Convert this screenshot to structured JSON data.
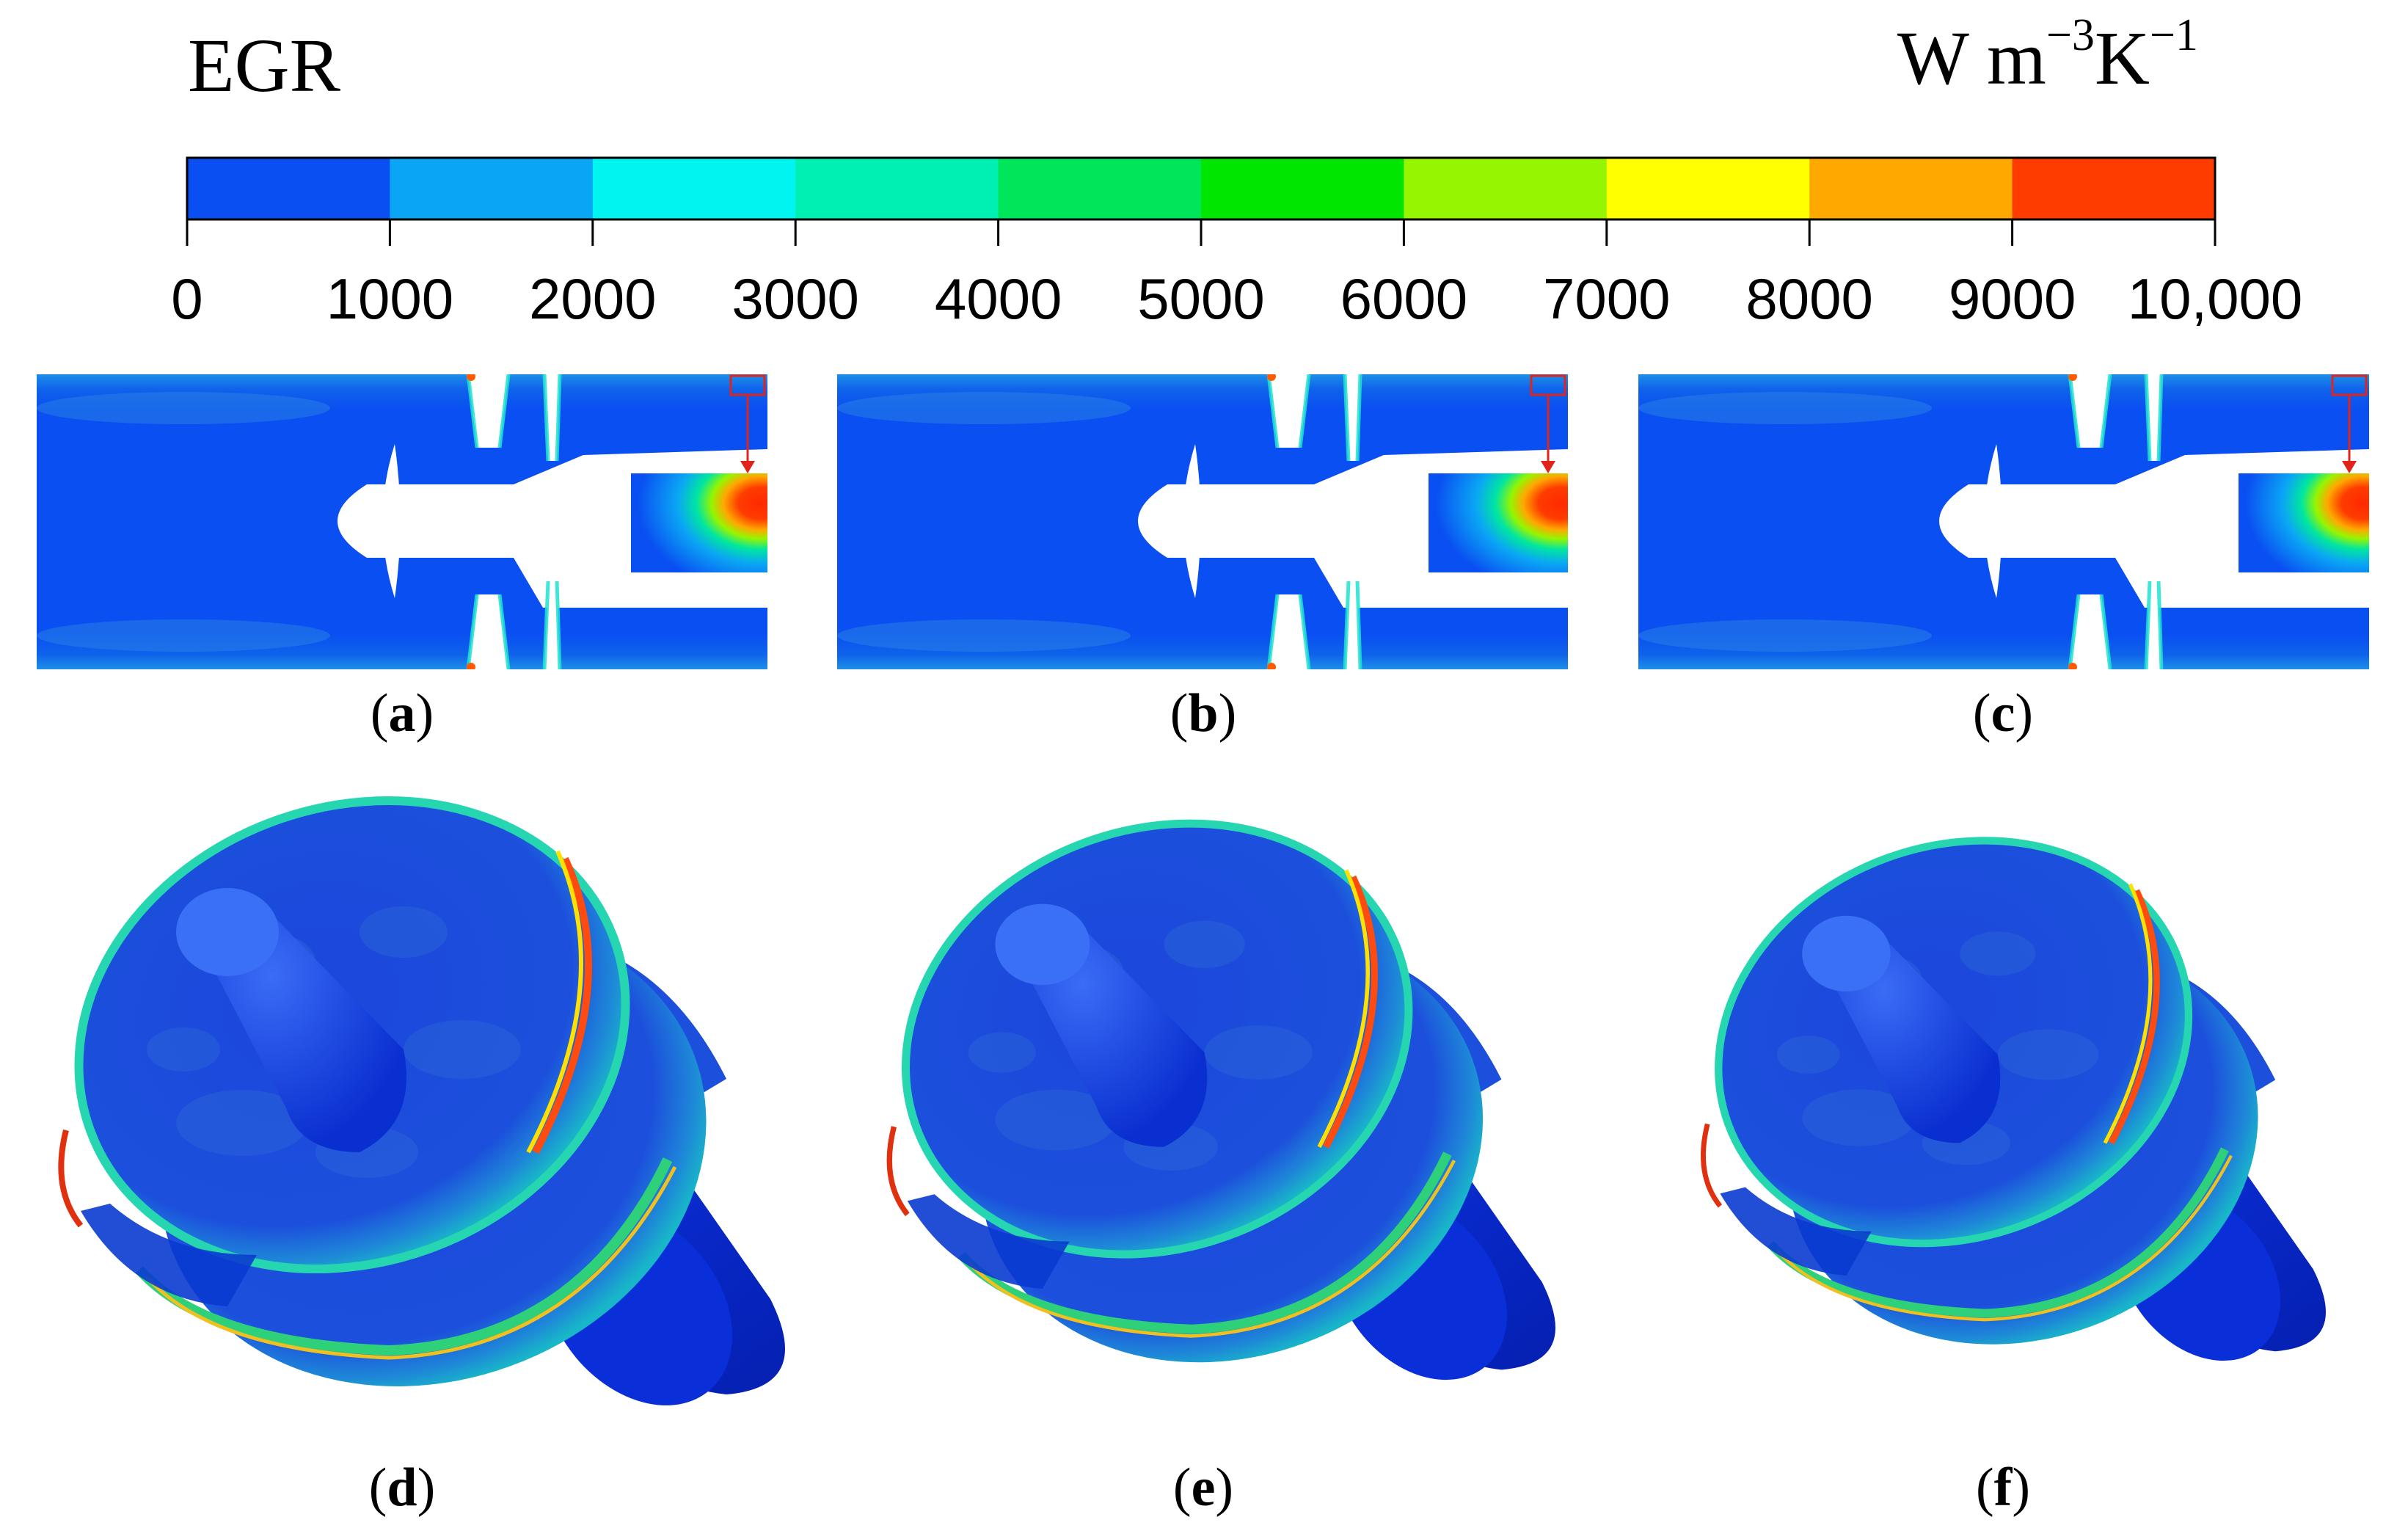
{
  "figure": {
    "title_left": "EGR",
    "unit": {
      "base": "W m",
      "exp1": "−3",
      "mid": "K",
      "exp2": "−1"
    }
  },
  "colorbar": {
    "ticks": [
      "0",
      "1000",
      "2000",
      "3000",
      "4000",
      "5000",
      "6000",
      "7000",
      "8000",
      "9000",
      "10,000"
    ],
    "colors": [
      "#0a4ff2",
      "#0aa6f5",
      "#00f5f0",
      "#00f0b4",
      "#00e65a",
      "#00e600",
      "#96f500",
      "#ffff00",
      "#ffa800",
      "#ff3c00"
    ],
    "min": 0,
    "max": 10000
  },
  "panels": [
    {
      "id": "a",
      "kind": "section",
      "caption": "a"
    },
    {
      "id": "b",
      "kind": "section",
      "caption": "b"
    },
    {
      "id": "c",
      "kind": "section",
      "caption": "c"
    },
    {
      "id": "d",
      "kind": "3d",
      "caption": "d"
    },
    {
      "id": "e",
      "kind": "3d",
      "caption": "e"
    },
    {
      "id": "f",
      "kind": "3d",
      "caption": "f"
    }
  ]
}
